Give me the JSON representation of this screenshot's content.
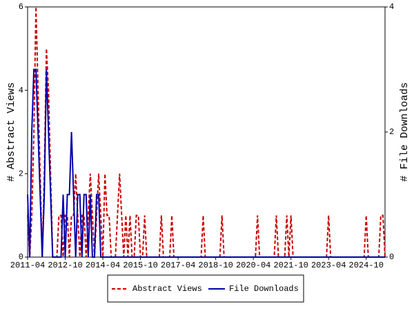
{
  "chart_data": {
    "type": "line",
    "y_label": "# Abstract Views",
    "y2_label": "# File Downloads",
    "categories": [
      "2011-04",
      null,
      null,
      null,
      null,
      null,
      null,
      null,
      null,
      null,
      null,
      null,
      null,
      null,
      null,
      null,
      null,
      null,
      "2012-10",
      null,
      null,
      null,
      null,
      null,
      null,
      null,
      null,
      null,
      null,
      null,
      null,
      null,
      null,
      null,
      null,
      null,
      "2014-04",
      null,
      null,
      null,
      null,
      null,
      null,
      null,
      null,
      null,
      null,
      null,
      null,
      null,
      null,
      null,
      null,
      null,
      "2015-10",
      null,
      null,
      null,
      null,
      null,
      null,
      null,
      null,
      null,
      null,
      null,
      null,
      null,
      null,
      null,
      null,
      null,
      "2017-04",
      null,
      null,
      null,
      null,
      null,
      null,
      null,
      null,
      null,
      null,
      null,
      null,
      null,
      null,
      null,
      null,
      null,
      "2018-10",
      null,
      null,
      null,
      null,
      null,
      null,
      null,
      null,
      null,
      null,
      null,
      null,
      null,
      null,
      null,
      null,
      null,
      "2020-04",
      null,
      null,
      null,
      null,
      null,
      null,
      null,
      null,
      null,
      null,
      null,
      null,
      null,
      null,
      null,
      null,
      null,
      "2021-10",
      null,
      null,
      null,
      null,
      null,
      null,
      null,
      null,
      null,
      null,
      null,
      null,
      null,
      null,
      null,
      null,
      null,
      "2023-04",
      null,
      null,
      null,
      null,
      null,
      null,
      null,
      null,
      null,
      null,
      null,
      null,
      null,
      null,
      null,
      null,
      null,
      "2024-10",
      null,
      null,
      null,
      null,
      null,
      null,
      null,
      null,
      null
    ],
    "series": [
      {
        "name": "Abstract Views",
        "color": "#cc0000",
        "dash": true,
        "values": [
          1,
          0,
          1,
          3,
          6,
          4,
          2,
          0,
          2,
          5,
          4,
          2,
          0,
          0,
          0,
          1,
          1,
          0,
          1,
          1,
          0,
          1,
          1,
          2,
          1,
          0,
          1,
          1,
          0,
          1,
          2,
          1,
          0,
          1,
          2,
          1,
          0,
          2,
          1,
          1,
          0,
          0,
          0,
          1,
          2,
          1,
          0,
          1,
          0,
          1,
          0,
          0,
          1,
          1,
          0,
          0,
          1,
          0,
          0,
          0,
          0,
          0,
          0,
          0,
          1,
          0,
          0,
          0,
          0,
          1,
          0,
          0,
          0,
          0,
          0,
          0,
          0,
          0,
          0,
          0,
          0,
          0,
          0,
          0,
          1,
          0,
          0,
          0,
          0,
          0,
          0,
          0,
          0,
          1,
          0,
          0,
          0,
          0,
          0,
          0,
          0,
          0,
          0,
          0,
          0,
          0,
          0,
          0,
          0,
          0,
          1,
          0,
          0,
          0,
          0,
          0,
          0,
          0,
          0,
          1,
          0,
          0,
          0,
          0,
          1,
          0,
          1,
          0,
          0,
          0,
          0,
          0,
          0,
          0,
          0,
          0,
          0,
          0,
          0,
          0,
          0,
          0,
          0,
          0,
          1,
          0,
          0,
          0,
          0,
          0,
          0,
          0,
          0,
          0,
          0,
          0,
          0,
          0,
          0,
          0,
          0,
          0,
          1,
          0,
          0,
          0,
          0,
          0,
          0,
          1,
          1,
          0
        ]
      },
      {
        "name": "File Downloads",
        "color": "#0000aa",
        "dash": false,
        "axis": "y2",
        "values": [
          1,
          0,
          2,
          3,
          3,
          2,
          1,
          0,
          1,
          3,
          2,
          1,
          0,
          0,
          0,
          0,
          0,
          1,
          0,
          1,
          1,
          2,
          1,
          0,
          1,
          1,
          0,
          1,
          1,
          0,
          1,
          0,
          0,
          1,
          1,
          0,
          0,
          0,
          0,
          0,
          0,
          0,
          0,
          0,
          0,
          0,
          0,
          0,
          0,
          0,
          0,
          0,
          0,
          0,
          0,
          0,
          0,
          0,
          0,
          0,
          0,
          0,
          0,
          0,
          0,
          0,
          0,
          0,
          0,
          0,
          0,
          0,
          0,
          0,
          0,
          0,
          0,
          0,
          0,
          0,
          0,
          0,
          0,
          0,
          0,
          0,
          0,
          0,
          0,
          0,
          0,
          0,
          0,
          0,
          0,
          0,
          0,
          0,
          0,
          0,
          0,
          0,
          0,
          0,
          0,
          0,
          0,
          0,
          0,
          0,
          0,
          0,
          0,
          0,
          0,
          0,
          0,
          0,
          0,
          0,
          0,
          0,
          0,
          0,
          0,
          0,
          0,
          0,
          0,
          0,
          0,
          0,
          0,
          0,
          0,
          0,
          0,
          0,
          0,
          0,
          0,
          0,
          0,
          0,
          0,
          0,
          0,
          0,
          0,
          0,
          0,
          0,
          0,
          0,
          0,
          0,
          0,
          0,
          0,
          0,
          0,
          0,
          0,
          0,
          0,
          0,
          0,
          0,
          0,
          0,
          0,
          0
        ]
      }
    ],
    "ylim": [
      0,
      6
    ],
    "yticks": [
      0,
      2,
      4,
      6
    ],
    "y2lim": [
      0,
      4
    ],
    "y2ticks": [
      0,
      2,
      4
    ],
    "grid": false,
    "legend": "bottom"
  }
}
